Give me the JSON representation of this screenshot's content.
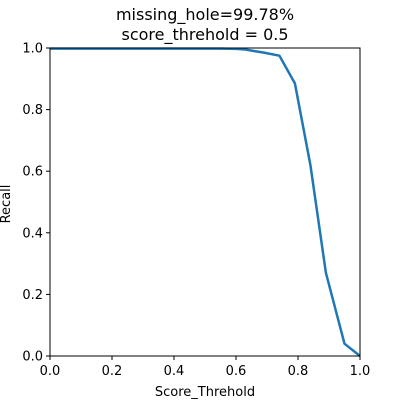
{
  "chart_data": {
    "type": "line",
    "title": "missing_hole=99.78%",
    "subtitle": "score_threhold = 0.5",
    "xlabel": "Score_Threhold",
    "ylabel": "Recall",
    "xlim": [
      0.0,
      1.0
    ],
    "ylim": [
      0.0,
      1.0
    ],
    "xticks": [
      "0.0",
      "0.2",
      "0.4",
      "0.6",
      "0.8",
      "1.0"
    ],
    "yticks": [
      "0.0",
      "0.2",
      "0.4",
      "0.6",
      "0.8",
      "1.0"
    ],
    "grid": false,
    "series": [
      {
        "color": "#1f77b4",
        "x": [
          0.0,
          0.05,
          0.1,
          0.15,
          0.2,
          0.25,
          0.3,
          0.35,
          0.4,
          0.45,
          0.5,
          0.55,
          0.6,
          0.63,
          0.66,
          0.69,
          0.74,
          0.79,
          0.84,
          0.89,
          0.95,
          1.0
        ],
        "y": [
          0.998,
          0.998,
          0.998,
          0.998,
          0.998,
          0.998,
          0.998,
          0.998,
          0.998,
          0.998,
          0.998,
          0.998,
          0.997,
          0.995,
          0.99,
          0.985,
          0.975,
          0.885,
          0.62,
          0.27,
          0.04,
          0.0
        ]
      }
    ]
  }
}
